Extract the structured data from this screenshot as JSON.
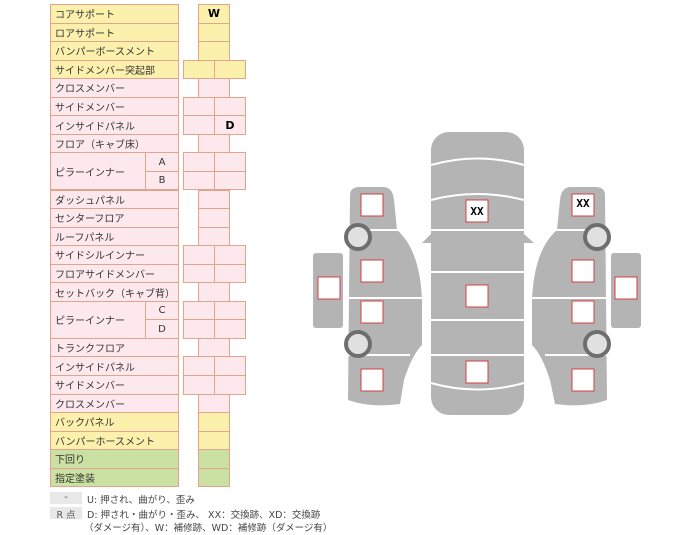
{
  "rows": [
    {
      "label": "コアサポート",
      "type": "single",
      "color": "yellow",
      "marks": [
        "W"
      ]
    },
    {
      "label": "ロアサポート",
      "type": "single",
      "color": "yellow",
      "marks": [
        ""
      ]
    },
    {
      "label": "バンパーボースメント",
      "type": "single",
      "color": "yellow",
      "marks": [
        ""
      ]
    },
    {
      "label": "サイドメンバー突起部",
      "type": "double",
      "color": "yellow",
      "marks": [
        "",
        ""
      ]
    },
    {
      "label": "クロスメンバー",
      "type": "single",
      "color": "pink",
      "marks": [
        ""
      ]
    },
    {
      "label": "サイドメンバー",
      "type": "double",
      "color": "pink",
      "marks": [
        "",
        ""
      ]
    },
    {
      "label": "インサイドパネル",
      "type": "double",
      "color": "pink",
      "marks": [
        "",
        "D"
      ]
    },
    {
      "label": "フロア（キャブ床）",
      "type": "single",
      "color": "pink",
      "marks": [
        ""
      ]
    },
    {
      "label": "ピラーインナー",
      "sub": "A",
      "type": "double",
      "color": "pink",
      "marks": [
        "",
        ""
      ]
    },
    {
      "label": "",
      "sub": "B",
      "type": "double",
      "color": "pink",
      "marks": [
        "",
        ""
      ]
    },
    {
      "label": "ダッシュパネル",
      "type": "single",
      "color": "pink",
      "marks": [
        ""
      ]
    },
    {
      "label": "センターフロア",
      "type": "single",
      "color": "pink",
      "marks": [
        ""
      ]
    },
    {
      "label": "ルーフパネル",
      "type": "single",
      "color": "pink",
      "marks": [
        ""
      ]
    },
    {
      "label": "サイドシルインナー",
      "type": "double",
      "color": "pink",
      "marks": [
        "",
        ""
      ]
    },
    {
      "label": "フロアサイドメンバー",
      "type": "double",
      "color": "pink",
      "marks": [
        "",
        ""
      ]
    },
    {
      "label": "セットバック（キャブ背）",
      "type": "single",
      "color": "pink",
      "marks": [
        ""
      ]
    },
    {
      "label": "ピラーインナー",
      "sub": "C",
      "type": "double",
      "color": "pink",
      "marks": [
        "",
        ""
      ]
    },
    {
      "label": "",
      "sub": "D",
      "type": "double",
      "color": "pink",
      "marks": [
        "",
        ""
      ]
    },
    {
      "label": "トランクフロア",
      "type": "single",
      "color": "pink",
      "marks": [
        ""
      ]
    },
    {
      "label": "インサイドパネル",
      "type": "double",
      "color": "pink",
      "marks": [
        "",
        ""
      ]
    },
    {
      "label": "サイドメンバー",
      "type": "double",
      "color": "pink",
      "marks": [
        "",
        ""
      ]
    },
    {
      "label": "クロスメンバー",
      "type": "single",
      "color": "pink",
      "marks": [
        ""
      ]
    },
    {
      "label": "バックパネル",
      "type": "single",
      "color": "yellow",
      "marks": [
        ""
      ]
    },
    {
      "label": "バンパーホースメント",
      "type": "single",
      "color": "yellow",
      "marks": [
        ""
      ]
    },
    {
      "label": "下回り",
      "type": "single",
      "color": "green",
      "marks": [
        ""
      ]
    },
    {
      "label": "指定塗装",
      "type": "single",
      "color": "green",
      "marks": [
        ""
      ]
    }
  ],
  "diagram": {
    "center": [
      "XX",
      "",
      ""
    ],
    "left": [
      "",
      "",
      "",
      "",
      ""
    ],
    "right": [
      "XX",
      "",
      "",
      "",
      ""
    ]
  },
  "legend": {
    "key1": "-",
    "text1": "U: 押され、曲がり、歪み",
    "key2": "R 点",
    "text2": "D: 押され・曲がり・歪み、 XX：交換跡、XD：交換跡",
    "text3": "（ダメージ有）、W：補修跡、WD：補修跡（ダメージ有）"
  },
  "colors": {
    "yellow": "#fcf0ad",
    "pink": "#fde9ed",
    "green": "#cbe0a3",
    "border": "#e2a58c",
    "body": "#b4b4b4",
    "box_border": "#d04040"
  }
}
